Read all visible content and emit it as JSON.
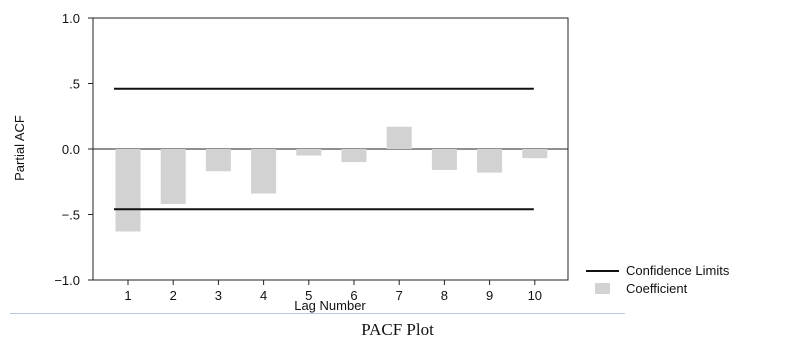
{
  "caption": "PACF Plot",
  "colors": {
    "bar": "#d2d2d2",
    "line": "#111111",
    "axis": "#222222",
    "rule": "#b7c9e6"
  },
  "chart_data": {
    "type": "bar",
    "title": "",
    "xlabel": "Lag Number",
    "ylabel": "Partial ACF",
    "x": [
      1,
      2,
      3,
      4,
      5,
      6,
      7,
      8,
      9,
      10
    ],
    "x_tick_labels": [
      "1",
      "2",
      "3",
      "4",
      "5",
      "6",
      "7",
      "8",
      "9",
      "10"
    ],
    "ylim": [
      -1.0,
      1.0
    ],
    "y_ticks": [
      -1.0,
      -0.5,
      0.0,
      0.5,
      1.0
    ],
    "y_tick_labels": [
      "−1.0",
      "−.5",
      "0.0",
      ".5",
      "1.0"
    ],
    "series": [
      {
        "name": "Coefficient",
        "kind": "bar",
        "values": [
          -0.63,
          -0.42,
          -0.17,
          -0.34,
          -0.05,
          -0.1,
          0.17,
          -0.16,
          -0.18,
          -0.07
        ]
      }
    ],
    "confidence_limits": {
      "name": "Confidence Limits",
      "upper": 0.46,
      "lower": -0.46,
      "x_range": [
        1,
        10
      ]
    },
    "zero_line": true,
    "grid": false,
    "legend": {
      "position": "right",
      "entries": [
        "Confidence Limits",
        "Coefficient"
      ]
    }
  }
}
